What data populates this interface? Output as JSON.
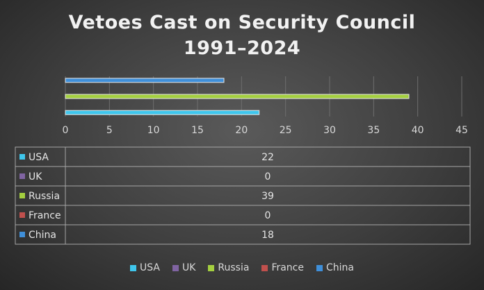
{
  "chart_data": {
    "type": "bar",
    "orientation": "horizontal",
    "title_lines": [
      "Vetoes Cast on Security Council",
      "1991–2024"
    ],
    "x_ticks": [
      "0",
      "5",
      "10",
      "15",
      "20",
      "25",
      "30",
      "35",
      "40",
      "45"
    ],
    "xlim": [
      0,
      45
    ],
    "grid": true,
    "legend_position": "bottom",
    "data_table": true,
    "series": [
      {
        "name": "USA",
        "value": 22,
        "value_label": "22",
        "color": "#3fc6ec"
      },
      {
        "name": "UK",
        "value": 0,
        "value_label": "0",
        "color": "#8064a2"
      },
      {
        "name": "Russia",
        "value": 39,
        "value_label": "39",
        "color": "#a4cf3f"
      },
      {
        "name": "France",
        "value": 0,
        "value_label": "0",
        "color": "#c0504d"
      },
      {
        "name": "China",
        "value": 18,
        "value_label": "18",
        "color": "#3f8fd9"
      }
    ]
  }
}
